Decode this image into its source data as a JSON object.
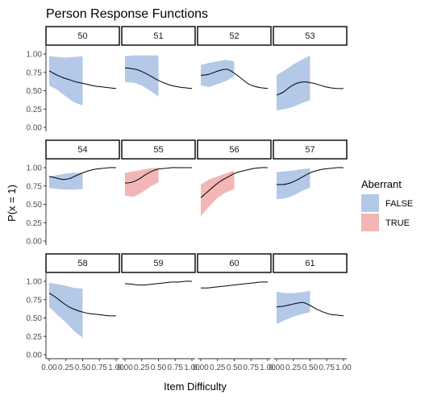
{
  "chart_data": {
    "type": "line",
    "title": "Person Response Functions",
    "xlabel": "Item Difficulty",
    "ylabel": "P(x = 1)",
    "xlim": [
      0,
      1
    ],
    "ylim": [
      0,
      1
    ],
    "x_ticks": [
      "0.00",
      "0.25",
      "0.50",
      "0.75",
      "1.00"
    ],
    "y_ticks": [
      "0.00",
      "0.25",
      "0.50",
      "0.75",
      "1.00"
    ],
    "legend": {
      "title": "Aberrant",
      "placement": "right",
      "entries": [
        {
          "label": "FALSE",
          "color": "#b4c8e8"
        },
        {
          "label": "TRUE",
          "color": "#f2b6b6"
        }
      ]
    },
    "colors": {
      "FALSE": "#b4c8e8",
      "TRUE": "#f2b6b6",
      "line": "#000000"
    },
    "panels": [
      {
        "label": "50",
        "aberrant": "FALSE",
        "curve": [
          [
            0,
            0.77
          ],
          [
            0.1,
            0.72
          ],
          [
            0.2,
            0.68
          ],
          [
            0.3,
            0.65
          ],
          [
            0.4,
            0.62
          ],
          [
            0.5,
            0.6
          ],
          [
            0.6,
            0.58
          ],
          [
            0.7,
            0.56
          ],
          [
            0.8,
            0.55
          ],
          [
            0.9,
            0.54
          ],
          [
            1.0,
            0.53
          ]
        ],
        "band_x": [
          0,
          0.5
        ],
        "band_lower": [
          0.57,
          0.51,
          0.42,
          0.34,
          0.3
        ],
        "band_upper": [
          0.97,
          0.96,
          0.95,
          0.96,
          0.97
        ]
      },
      {
        "label": "51",
        "aberrant": "FALSE",
        "curve": [
          [
            0,
            0.81
          ],
          [
            0.1,
            0.8
          ],
          [
            0.2,
            0.78
          ],
          [
            0.3,
            0.74
          ],
          [
            0.4,
            0.69
          ],
          [
            0.5,
            0.64
          ],
          [
            0.6,
            0.6
          ],
          [
            0.7,
            0.57
          ],
          [
            0.8,
            0.55
          ],
          [
            0.9,
            0.54
          ],
          [
            1.0,
            0.53
          ]
        ],
        "band_x": [
          0,
          0.5
        ],
        "band_lower": [
          0.62,
          0.61,
          0.57,
          0.5,
          0.42
        ],
        "band_upper": [
          0.97,
          0.98,
          0.98,
          0.98,
          0.98
        ]
      },
      {
        "label": "52",
        "aberrant": "FALSE",
        "curve": [
          [
            0,
            0.71
          ],
          [
            0.1,
            0.72
          ],
          [
            0.2,
            0.75
          ],
          [
            0.3,
            0.78
          ],
          [
            0.4,
            0.79
          ],
          [
            0.5,
            0.74
          ],
          [
            0.6,
            0.67
          ],
          [
            0.7,
            0.6
          ],
          [
            0.8,
            0.56
          ],
          [
            0.9,
            0.54
          ],
          [
            1.0,
            0.53
          ]
        ],
        "band_x": [
          0,
          0.5
        ],
        "band_lower": [
          0.57,
          0.55,
          0.59,
          0.63,
          0.7
        ],
        "band_upper": [
          0.85,
          0.88,
          0.9,
          0.92,
          0.9
        ]
      },
      {
        "label": "53",
        "aberrant": "FALSE",
        "curve": [
          [
            0,
            0.44
          ],
          [
            0.1,
            0.48
          ],
          [
            0.2,
            0.55
          ],
          [
            0.3,
            0.6
          ],
          [
            0.4,
            0.62
          ],
          [
            0.5,
            0.61
          ],
          [
            0.6,
            0.59
          ],
          [
            0.7,
            0.56
          ],
          [
            0.8,
            0.54
          ],
          [
            0.9,
            0.53
          ],
          [
            1.0,
            0.53
          ]
        ],
        "band_x": [
          0,
          0.5
        ],
        "band_lower": [
          0.23,
          0.25,
          0.28,
          0.33,
          0.37
        ],
        "band_upper": [
          0.71,
          0.78,
          0.86,
          0.92,
          0.98
        ]
      },
      {
        "label": "54",
        "aberrant": "FALSE",
        "curve": [
          [
            0,
            0.88
          ],
          [
            0.1,
            0.86
          ],
          [
            0.2,
            0.84
          ],
          [
            0.3,
            0.85
          ],
          [
            0.4,
            0.89
          ],
          [
            0.5,
            0.93
          ],
          [
            0.6,
            0.96
          ],
          [
            0.7,
            0.98
          ],
          [
            0.8,
            0.99
          ],
          [
            0.9,
            1.0
          ],
          [
            1.0,
            1.0
          ]
        ],
        "band_x": [
          0,
          0.5
        ],
        "band_lower": [
          0.72,
          0.71,
          0.7,
          0.7,
          0.71
        ],
        "band_upper": [
          0.88,
          0.9,
          0.92,
          0.93,
          0.93
        ]
      },
      {
        "label": "55",
        "aberrant": "TRUE",
        "curve": [
          [
            0,
            0.79
          ],
          [
            0.1,
            0.8
          ],
          [
            0.2,
            0.84
          ],
          [
            0.3,
            0.9
          ],
          [
            0.4,
            0.95
          ],
          [
            0.5,
            0.98
          ],
          [
            0.6,
            0.99
          ],
          [
            0.7,
            1.0
          ],
          [
            0.8,
            1.0
          ],
          [
            0.9,
            1.0
          ],
          [
            1.0,
            1.0
          ]
        ],
        "band_x": [
          0,
          0.5
        ],
        "band_lower": [
          0.62,
          0.6,
          0.66,
          0.74,
          0.8
        ],
        "band_upper": [
          0.93,
          0.95,
          0.97,
          0.99,
          1.0
        ]
      },
      {
        "label": "56",
        "aberrant": "TRUE",
        "curve": [
          [
            0,
            0.59
          ],
          [
            0.1,
            0.67
          ],
          [
            0.2,
            0.75
          ],
          [
            0.3,
            0.82
          ],
          [
            0.4,
            0.87
          ],
          [
            0.5,
            0.92
          ],
          [
            0.6,
            0.95
          ],
          [
            0.7,
            0.97
          ],
          [
            0.8,
            0.99
          ],
          [
            0.9,
            1.0
          ],
          [
            1.0,
            1.0
          ]
        ],
        "band_x": [
          0,
          0.5
        ],
        "band_lower": [
          0.34,
          0.47,
          0.59,
          0.66,
          0.71
        ],
        "band_upper": [
          0.77,
          0.84,
          0.88,
          0.92,
          0.96
        ]
      },
      {
        "label": "57",
        "aberrant": "FALSE",
        "curve": [
          [
            0,
            0.77
          ],
          [
            0.1,
            0.77
          ],
          [
            0.2,
            0.79
          ],
          [
            0.3,
            0.83
          ],
          [
            0.4,
            0.88
          ],
          [
            0.5,
            0.93
          ],
          [
            0.6,
            0.96
          ],
          [
            0.7,
            0.98
          ],
          [
            0.8,
            0.99
          ],
          [
            0.9,
            1.0
          ],
          [
            1.0,
            1.0
          ]
        ],
        "band_x": [
          0,
          0.5
        ],
        "band_lower": [
          0.57,
          0.58,
          0.62,
          0.68,
          0.73
        ],
        "band_upper": [
          0.94,
          0.95,
          0.96,
          0.98,
          0.99
        ]
      },
      {
        "label": "58",
        "aberrant": "FALSE",
        "curve": [
          [
            0,
            0.84
          ],
          [
            0.1,
            0.78
          ],
          [
            0.2,
            0.71
          ],
          [
            0.3,
            0.65
          ],
          [
            0.4,
            0.61
          ],
          [
            0.5,
            0.58
          ],
          [
            0.6,
            0.56
          ],
          [
            0.7,
            0.55
          ],
          [
            0.8,
            0.54
          ],
          [
            0.9,
            0.53
          ],
          [
            1.0,
            0.53
          ]
        ],
        "band_x": [
          0,
          0.5
        ],
        "band_lower": [
          0.65,
          0.54,
          0.44,
          0.32,
          0.23
        ],
        "band_upper": [
          0.98,
          0.96,
          0.94,
          0.91,
          0.9
        ]
      },
      {
        "label": "59",
        "aberrant": "FALSE",
        "curve": [
          [
            0,
            0.97
          ],
          [
            0.1,
            0.96
          ],
          [
            0.2,
            0.95
          ],
          [
            0.3,
            0.95
          ],
          [
            0.4,
            0.96
          ],
          [
            0.5,
            0.97
          ],
          [
            0.6,
            0.98
          ],
          [
            0.7,
            0.99
          ],
          [
            0.8,
            0.99
          ],
          [
            0.9,
            1.0
          ],
          [
            1.0,
            1.0
          ]
        ],
        "band_x": null,
        "band_lower": null,
        "band_upper": null
      },
      {
        "label": "60",
        "aberrant": "FALSE",
        "curve": [
          [
            0,
            0.91
          ],
          [
            0.1,
            0.91
          ],
          [
            0.2,
            0.92
          ],
          [
            0.3,
            0.93
          ],
          [
            0.4,
            0.94
          ],
          [
            0.5,
            0.95
          ],
          [
            0.6,
            0.96
          ],
          [
            0.7,
            0.97
          ],
          [
            0.8,
            0.98
          ],
          [
            0.9,
            0.99
          ],
          [
            1.0,
            0.99
          ]
        ],
        "band_x": null,
        "band_lower": null,
        "band_upper": null
      },
      {
        "label": "61",
        "aberrant": "FALSE",
        "curve": [
          [
            0,
            0.65
          ],
          [
            0.1,
            0.66
          ],
          [
            0.2,
            0.68
          ],
          [
            0.3,
            0.7
          ],
          [
            0.4,
            0.71
          ],
          [
            0.5,
            0.67
          ],
          [
            0.6,
            0.62
          ],
          [
            0.7,
            0.58
          ],
          [
            0.8,
            0.55
          ],
          [
            0.9,
            0.54
          ],
          [
            1.0,
            0.53
          ]
        ],
        "band_x": [
          0,
          0.5
        ],
        "band_lower": [
          0.42,
          0.47,
          0.52,
          0.55,
          0.58
        ],
        "band_upper": [
          0.86,
          0.84,
          0.84,
          0.85,
          0.87
        ]
      }
    ]
  }
}
